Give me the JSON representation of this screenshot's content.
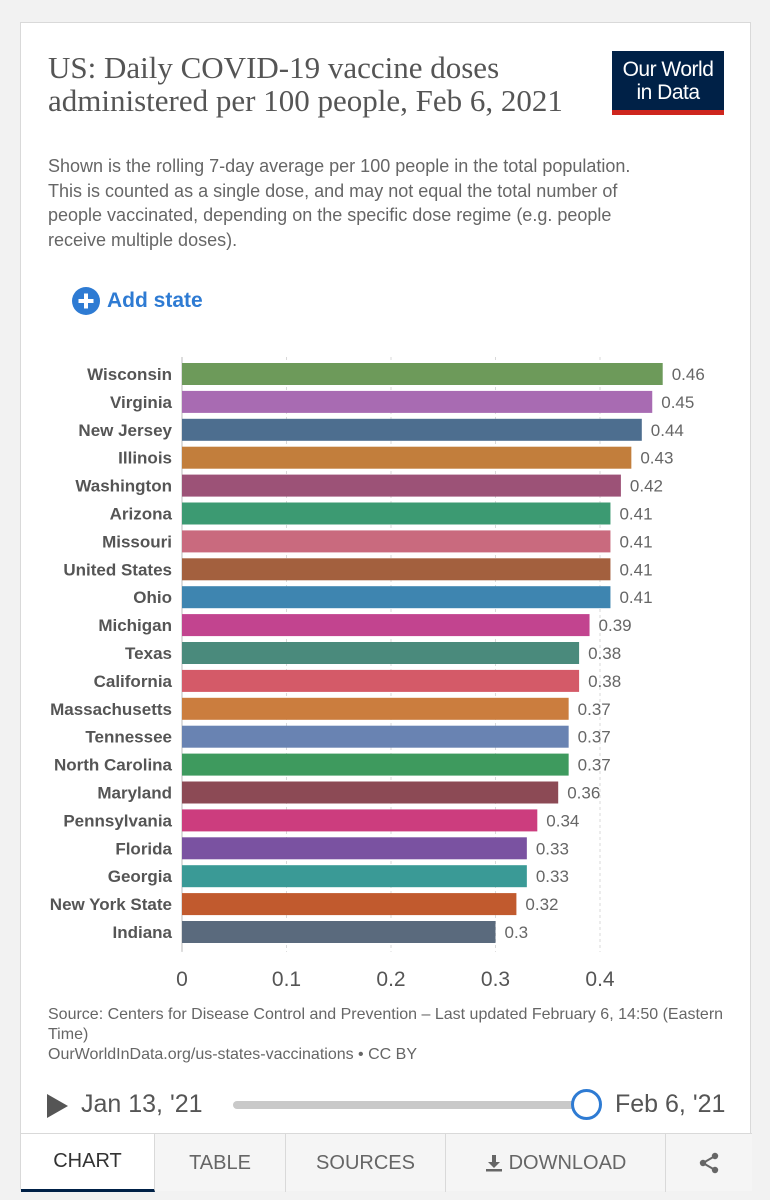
{
  "header": {
    "title": "US: Daily COVID-19 vaccine doses administered per 100 people, Feb 6, 2021",
    "subtitle": "Shown is the rolling 7-day average per 100 people in the total population. This is counted as a single dose, and may not equal the total number of people vaccinated, depending on the specific dose regime (e.g. people receive multiple doses).",
    "logo_line1": "Our World",
    "logo_line2": "in Data"
  },
  "controls": {
    "add_state_label": "Add state"
  },
  "chart_data": {
    "type": "bar",
    "orientation": "horizontal",
    "categories": [
      "Wisconsin",
      "Virginia",
      "New Jersey",
      "Illinois",
      "Washington",
      "Arizona",
      "Missouri",
      "United States",
      "Ohio",
      "Michigan",
      "Texas",
      "California",
      "Massachusetts",
      "Tennessee",
      "North Carolina",
      "Maryland",
      "Pennsylvania",
      "Florida",
      "Georgia",
      "New York State",
      "Indiana"
    ],
    "values": [
      0.46,
      0.45,
      0.44,
      0.43,
      0.42,
      0.41,
      0.41,
      0.41,
      0.41,
      0.39,
      0.38,
      0.38,
      0.37,
      0.37,
      0.37,
      0.36,
      0.34,
      0.33,
      0.33,
      0.32,
      0.3
    ],
    "value_labels": [
      "0.46",
      "0.45",
      "0.44",
      "0.43",
      "0.42",
      "0.41",
      "0.41",
      "0.41",
      "0.41",
      "0.39",
      "0.38",
      "0.38",
      "0.37",
      "0.37",
      "0.37",
      "0.36",
      "0.34",
      "0.33",
      "0.33",
      "0.32",
      "0.3"
    ],
    "colors": [
      "#6d9a5a",
      "#a86bb2",
      "#4d6e8f",
      "#c27e3c",
      "#9c5277",
      "#3c9a72",
      "#c96a7e",
      "#a3603e",
      "#3e85b0",
      "#c2448f",
      "#4a8a7c",
      "#d45a68",
      "#cb7d3e",
      "#6983b2",
      "#3e9a5e",
      "#8c4a55",
      "#cc3d7e",
      "#7a52a1",
      "#3a9a96",
      "#c15a2e",
      "#5a6a7d"
    ],
    "xticks": [
      0,
      0.1,
      0.2,
      0.3,
      0.4
    ],
    "xtick_labels": [
      "0",
      "0.1",
      "0.2",
      "0.3",
      "0.4"
    ],
    "xlim": [
      0,
      0.46
    ],
    "grid": true,
    "title": "US: Daily COVID-19 vaccine doses administered per 100 people, Feb 6, 2021"
  },
  "footer": {
    "source": "Source: Centers for Disease Control and Prevention – Last updated February 6, 14:50 (Eastern Time)",
    "license": "OurWorldInData.org/us-states-vaccinations • CC BY"
  },
  "timeline": {
    "start_label": "Jan 13, '21",
    "end_label": "Feb 6, '21"
  },
  "tabs": {
    "chart": "CHART",
    "table": "TABLE",
    "sources": "SOURCES",
    "download": "DOWNLOAD"
  }
}
